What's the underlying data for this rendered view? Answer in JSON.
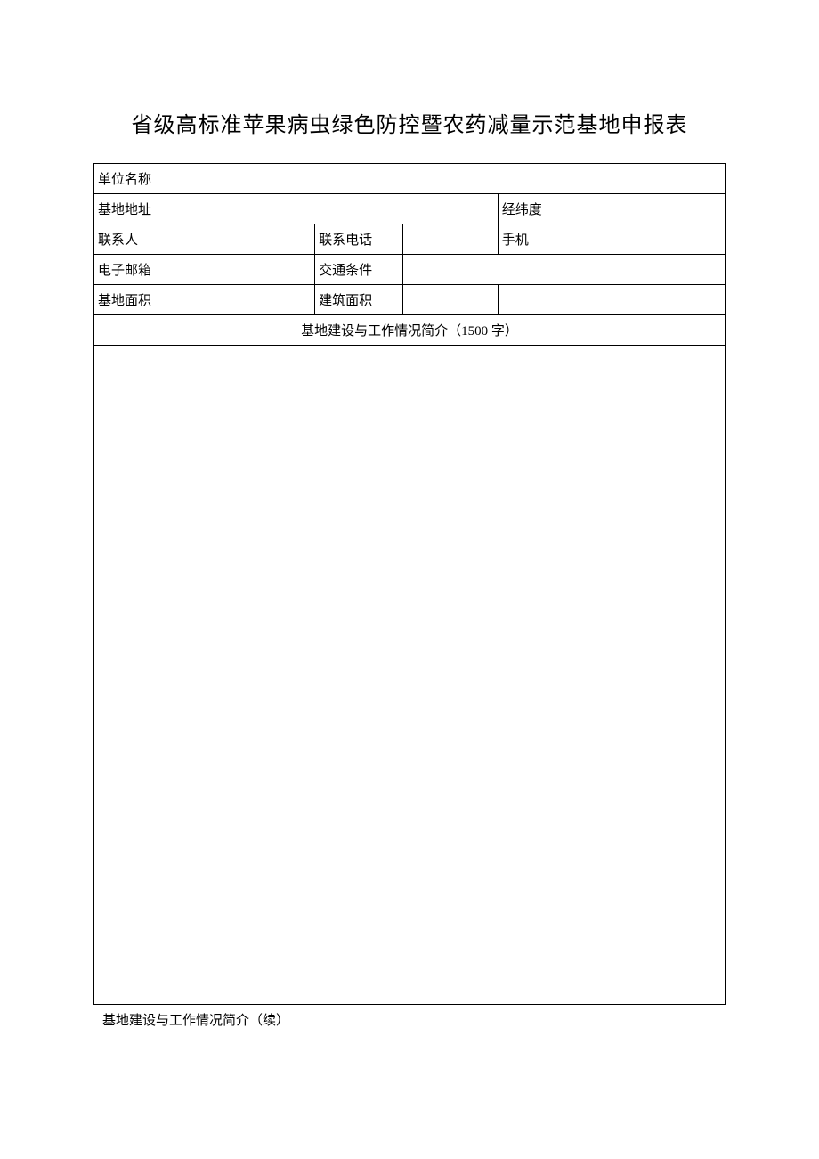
{
  "document": {
    "title": "省级高标准苹果病虫绿色防控暨农药减量示范基地申报表",
    "background_color": "#ffffff",
    "text_color": "#000000",
    "border_color": "#000000",
    "title_fontsize": 24,
    "body_fontsize": 15
  },
  "table": {
    "rows": [
      {
        "cells": [
          {
            "label": "单位名称",
            "value": "",
            "colspan_value": 5
          }
        ]
      },
      {
        "cells": [
          {
            "label": "基地地址",
            "value": "",
            "colspan_value": 3
          },
          {
            "label": "经纬度",
            "value": ""
          }
        ]
      },
      {
        "cells": [
          {
            "label": "联系人",
            "value": ""
          },
          {
            "label": "联系电话",
            "value": ""
          },
          {
            "label": "手机",
            "value": ""
          }
        ]
      },
      {
        "cells": [
          {
            "label": "电子邮箱",
            "value": ""
          },
          {
            "label": "交通条件",
            "value": "",
            "colspan_value": 3
          }
        ]
      },
      {
        "cells": [
          {
            "label": "基地面积",
            "value": ""
          },
          {
            "label": "建筑面积",
            "value": ""
          },
          {
            "label": "",
            "value": ""
          }
        ]
      }
    ],
    "section_header": "基地建设与工作情况简介（1500 字）",
    "section_content": "",
    "footer_note": "基地建设与工作情况简介（续）"
  }
}
